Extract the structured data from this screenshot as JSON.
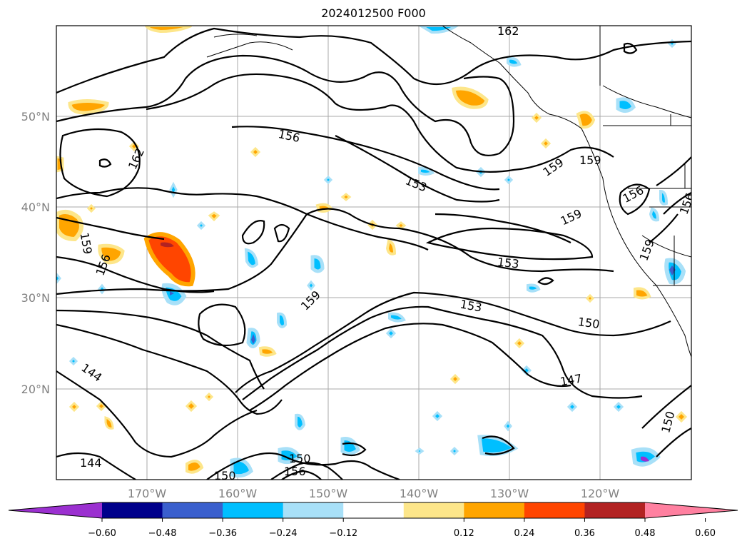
{
  "title": "2024012500 F000",
  "map": {
    "lat_labels": [
      "50°N",
      "40°N",
      "30°N",
      "20°N"
    ],
    "lon_labels": [
      "170°W",
      "160°W",
      "150°W",
      "140°W",
      "130°W",
      "120°W"
    ],
    "contour_labels": [
      "162",
      "156",
      "153",
      "159",
      "159",
      "159",
      "156",
      "156",
      "159",
      "156",
      "153",
      "153",
      "150",
      "147",
      "144",
      "144",
      "150",
      "150",
      "156",
      "150",
      "162",
      "159",
      "159"
    ]
  },
  "colorbar": {
    "ticks": [
      "−0.60",
      "−0.48",
      "−0.36",
      "−0.24",
      "−0.12",
      "0.12",
      "0.24",
      "0.36",
      "0.48",
      "0.60"
    ],
    "colors": [
      "#9b30d0",
      "#00008b",
      "#3a5fcd",
      "#00bfff",
      "#a8e0f8",
      "#ffffff",
      "#fde68a",
      "#ffa500",
      "#ff4500",
      "#b22222",
      "#ff80a0"
    ]
  }
}
